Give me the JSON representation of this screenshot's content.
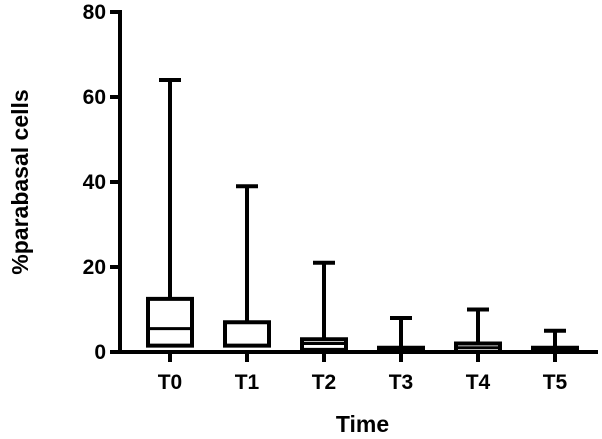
{
  "chart_data": {
    "type": "boxplot",
    "title": "",
    "xlabel": "Time",
    "ylabel": "%parabasal cells",
    "ylim": [
      0,
      80
    ],
    "yticks": [
      0,
      20,
      40,
      60,
      80
    ],
    "grid": false,
    "legend": "none",
    "categories": [
      "T0",
      "T1",
      "T2",
      "T3",
      "T4",
      "T5"
    ],
    "boxes": [
      {
        "category": "T0",
        "min": 0,
        "q1": 1.5,
        "median": 5.5,
        "q3": 12.5,
        "max": 64
      },
      {
        "category": "T1",
        "min": 0,
        "q1": 1.5,
        "median": 1.5,
        "q3": 7,
        "max": 39
      },
      {
        "category": "T2",
        "min": 0,
        "q1": 0.5,
        "median": 2,
        "q3": 3,
        "max": 21
      },
      {
        "category": "T3",
        "min": 0,
        "q1": 0,
        "median": 0.5,
        "q3": 1,
        "max": 8
      },
      {
        "category": "T4",
        "min": 0,
        "q1": 0,
        "median": 1,
        "q3": 2,
        "max": 10
      },
      {
        "category": "T5",
        "min": 0,
        "q1": 0,
        "median": 0.5,
        "q3": 1,
        "max": 5
      }
    ],
    "colors": {
      "stroke": "#000000",
      "background": "#ffffff"
    }
  }
}
